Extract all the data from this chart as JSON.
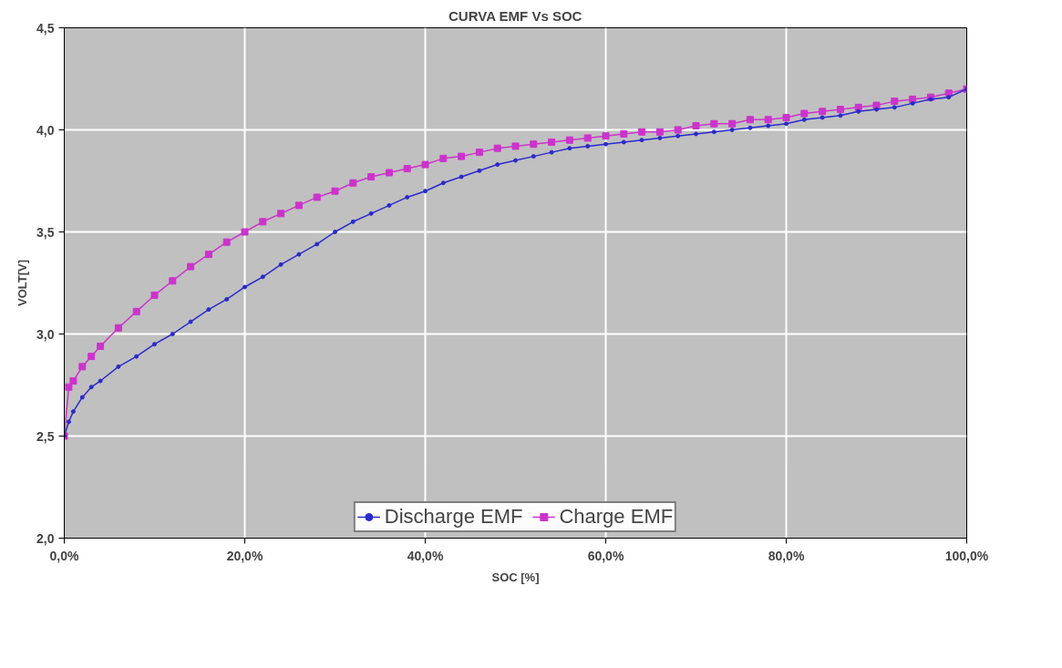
{
  "chart_data": {
    "type": "line",
    "title": "CURVA EMF Vs SOC",
    "xlabel": "SOC [%]",
    "ylabel": "VOLT[V]",
    "x": [
      0,
      0.5,
      1,
      2,
      3,
      4,
      6,
      8,
      10,
      12,
      14,
      16,
      18,
      20,
      22,
      24,
      26,
      28,
      30,
      32,
      34,
      36,
      38,
      40,
      42,
      44,
      46,
      48,
      50,
      52,
      54,
      56,
      58,
      60,
      62,
      64,
      66,
      68,
      70,
      72,
      74,
      76,
      78,
      80,
      82,
      84,
      86,
      88,
      90,
      92,
      94,
      96,
      98,
      100
    ],
    "series": [
      {
        "name": "Discharge EMF",
        "color": "#2a2acc",
        "marker": "circle",
        "values": [
          2.5,
          2.57,
          2.62,
          2.69,
          2.74,
          2.77,
          2.84,
          2.89,
          2.95,
          3.0,
          3.06,
          3.12,
          3.17,
          3.23,
          3.28,
          3.34,
          3.39,
          3.44,
          3.5,
          3.55,
          3.59,
          3.63,
          3.67,
          3.7,
          3.74,
          3.77,
          3.8,
          3.83,
          3.85,
          3.87,
          3.89,
          3.91,
          3.92,
          3.93,
          3.94,
          3.95,
          3.96,
          3.97,
          3.98,
          3.99,
          4.0,
          4.01,
          4.02,
          4.03,
          4.05,
          4.06,
          4.07,
          4.09,
          4.1,
          4.11,
          4.13,
          4.15,
          4.16,
          4.2
        ]
      },
      {
        "name": "Charge EMF",
        "color": "#cc33cc",
        "marker": "square",
        "values": [
          2.5,
          2.74,
          2.77,
          2.84,
          2.89,
          2.94,
          3.03,
          3.11,
          3.19,
          3.26,
          3.33,
          3.39,
          3.45,
          3.5,
          3.55,
          3.59,
          3.63,
          3.67,
          3.7,
          3.74,
          3.77,
          3.79,
          3.81,
          3.83,
          3.86,
          3.87,
          3.89,
          3.91,
          3.92,
          3.93,
          3.94,
          3.95,
          3.96,
          3.97,
          3.98,
          3.99,
          3.99,
          4.0,
          4.02,
          4.03,
          4.03,
          4.05,
          4.05,
          4.06,
          4.08,
          4.09,
          4.1,
          4.11,
          4.12,
          4.14,
          4.15,
          4.16,
          4.18,
          4.2
        ]
      }
    ],
    "xlim": [
      0,
      100
    ],
    "xticks": [
      {
        "value": 0,
        "label": "0,0%"
      },
      {
        "value": 20,
        "label": "20,0%"
      },
      {
        "value": 40,
        "label": "40,0%"
      },
      {
        "value": 60,
        "label": "60,0%"
      },
      {
        "value": 80,
        "label": "80,0%"
      },
      {
        "value": 100,
        "label": "100,0%"
      }
    ],
    "ylim": [
      2.0,
      4.5
    ],
    "yticks": [
      {
        "value": 2.0,
        "label": "2,0"
      },
      {
        "value": 2.5,
        "label": "2,5"
      },
      {
        "value": 3.0,
        "label": "3,0"
      },
      {
        "value": 3.5,
        "label": "3,5"
      },
      {
        "value": 4.0,
        "label": "4,0"
      },
      {
        "value": 4.5,
        "label": "4,5"
      }
    ],
    "grid": true,
    "legend": "bottom",
    "line_style": "solid"
  }
}
